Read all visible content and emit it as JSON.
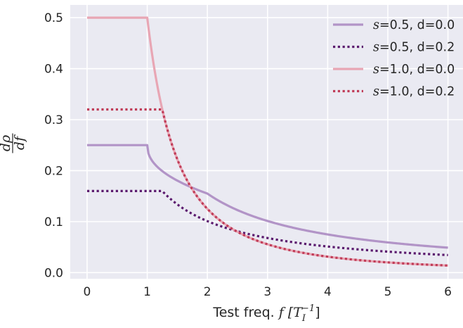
{
  "chart_data": {
    "type": "line",
    "xlabel": {
      "prefix": "Test freq. ",
      "var": "f",
      "unit": "[T",
      "sub": "I",
      "sup": "−1",
      "close": "]"
    },
    "ylabel": {
      "num": "dρ",
      "den": "df"
    },
    "xlim": [
      -0.28,
      6.25
    ],
    "ylim": [
      -0.012,
      0.525
    ],
    "xticks": [
      0,
      1,
      2,
      3,
      4,
      5,
      6
    ],
    "yticks": [
      0.0,
      0.1,
      0.2,
      0.3,
      0.4,
      0.5
    ],
    "xtick_labels": [
      "0",
      "1",
      "2",
      "3",
      "4",
      "5",
      "6"
    ],
    "ytick_labels": [
      "0.0",
      "0.1",
      "0.2",
      "0.3",
      "0.4",
      "0.5"
    ],
    "grid": true,
    "legend_position": "top-right",
    "series": [
      {
        "var": "s",
        "label": "=0.5, d=0.0",
        "color": "#b294c7",
        "style": "solid",
        "s": 0.5,
        "d": 0.0
      },
      {
        "var": "s",
        "label": "=0.5, d=0.2",
        "color": "#5b1a6e",
        "style": "dotted",
        "s": 0.5,
        "d": 0.2
      },
      {
        "var": "s",
        "label": "=1.0, d=0.0",
        "color": "#e8a6b4",
        "style": "solid",
        "s": 1.0,
        "d": 0.0
      },
      {
        "var": "s",
        "label": "=1.0, d=0.2",
        "color": "#c03c58",
        "style": "dotted",
        "s": 1.0,
        "d": 0.2
      }
    ]
  }
}
